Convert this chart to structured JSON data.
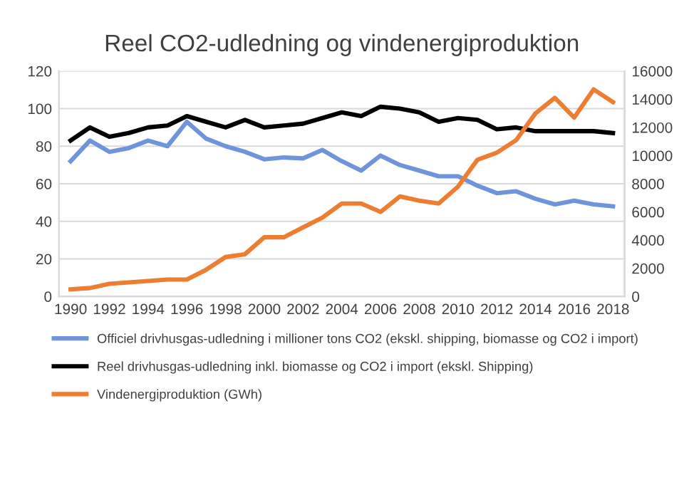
{
  "chart_data": {
    "type": "line",
    "title": "Reel CO2-udledning og vindenergiproduktion",
    "categories": [
      "1990",
      null,
      "1992",
      null,
      "1994",
      null,
      "1996",
      null,
      "1998",
      null,
      "2000",
      null,
      "2002",
      null,
      "2004",
      null,
      "2006",
      null,
      "2008",
      null,
      "2010",
      null,
      "2012",
      null,
      "2014",
      null,
      "2016",
      null,
      "2018"
    ],
    "series": [
      {
        "name": "Officiel drivhusgas-udledning i millioner tons CO2 (ekskl. shipping, biomasse og CO2 i import)",
        "color": "#7094dc",
        "values": [
          72,
          83,
          77,
          79,
          83,
          80,
          93,
          84,
          80,
          77,
          73,
          74,
          73.5,
          78,
          72,
          67,
          75,
          70,
          67,
          64,
          64,
          59,
          55,
          56,
          52,
          49,
          51,
          49,
          48
        ]
      },
      {
        "name": "Reel drivhusgas-udledning inkl. biomasse og CO2 i import (ekskl. Shipping)",
        "color": "#000000",
        "values": [
          83,
          90,
          85,
          87,
          90,
          91,
          96,
          93,
          90,
          94,
          90,
          91,
          92,
          95,
          98,
          96,
          101,
          100,
          98,
          93,
          95,
          94,
          89,
          90,
          88,
          88,
          88,
          88,
          87
        ]
      },
      {
        "name": "Vindenergiproduktion (GWh)",
        "color": "#ed7d31",
        "axis": "y2",
        "values": [
          500,
          600,
          900,
          1000,
          1100,
          1200,
          1200,
          1900,
          2800,
          3000,
          4200,
          4200,
          4900,
          5600,
          6600,
          6600,
          6000,
          7100,
          6800,
          6600,
          7800,
          9700,
          10200,
          11100,
          13000,
          14100,
          12700,
          14700,
          13800
        ]
      }
    ],
    "ylim": [
      0,
      120
    ],
    "yticks": [
      0,
      20,
      40,
      60,
      80,
      100,
      120
    ],
    "y2lim": [
      0,
      16000
    ],
    "y2ticks": [
      0,
      2000,
      4000,
      6000,
      8000,
      10000,
      12000,
      14000,
      16000
    ],
    "grid": "y",
    "legend": "bottom",
    "marker": "none",
    "line_style": "solid"
  }
}
